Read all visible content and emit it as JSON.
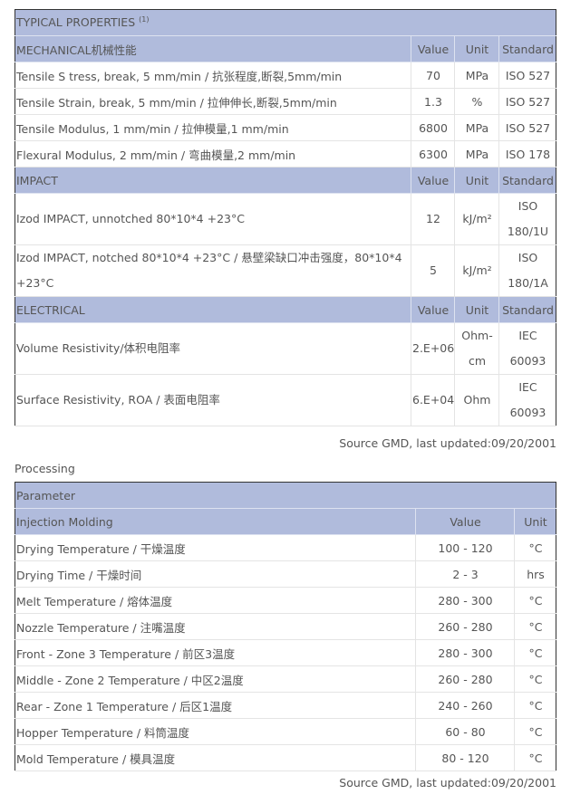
{
  "properties": {
    "title": "TYPICAL PROPERTIES",
    "title_note": "(1)",
    "mechanical": {
      "header": "MECHANICAL机械性能",
      "value": "Value",
      "unit": "Unit",
      "standard": "Standard",
      "rows": [
        {
          "name": "Tensile S tress, break, 5 mm/min / 抗张程度,断裂,5mm/min",
          "value": "70",
          "unit": "MPa",
          "standard": "ISO 527"
        },
        {
          "name": "Tensile Strain, break, 5 mm/min / 拉伸伸长,断裂,5mm/min",
          "value": "1.3",
          "unit": "%",
          "standard": "ISO 527"
        },
        {
          "name": "Tensile Modulus, 1 mm/min / 拉伸模量,1 mm/min",
          "value": "6800",
          "unit": "MPa",
          "standard": "ISO 527"
        },
        {
          "name": "Flexural Modulus, 2 mm/min / 弯曲模量,2 mm/min",
          "value": "6300",
          "unit": "MPa",
          "standard": "ISO 178"
        }
      ]
    },
    "impact": {
      "header": "IMPACT",
      "value": "Value",
      "unit": "Unit",
      "standard": "Standard",
      "rows": [
        {
          "name": "Izod IMPACT, unnotched 80*10*4 +23°C",
          "value": "12",
          "unit": "kJ/m²",
          "standard": "ISO 180/1U"
        },
        {
          "name": "Izod IMPACT, notched 80*10*4 +23°C / 悬壁梁缺口冲击强度，80*10*4 +23°C",
          "value": "5",
          "unit": "kJ/m²",
          "standard": "ISO 180/1A"
        }
      ]
    },
    "electrical": {
      "header": "ELECTRICAL",
      "value": "Value",
      "unit": "Unit",
      "standard": "Standard",
      "rows": [
        {
          "name": "Volume Resistivity/体积电阻率",
          "value": "2.E+06",
          "unit": "Ohm-cm",
          "standard": "IEC 60093"
        },
        {
          "name": "Surface Resistivity, ROA / 表面电阻率",
          "value": "6.E+04",
          "unit": "Ohm",
          "standard": "IEC 60093"
        }
      ]
    },
    "source": "Source GMD, last updated:09/20/2001"
  },
  "processing": {
    "label": "Processing",
    "header": "Parameter",
    "section": "Injection Molding",
    "value": "Value",
    "unit": "Unit",
    "rows": [
      {
        "name": "Drying Temperature / 干燥温度",
        "value": "100 - 120",
        "unit": "°C"
      },
      {
        "name": "Drying Time / 干燥时间",
        "value": "2 - 3",
        "unit": "hrs"
      },
      {
        "name": "Melt Temperature / 熔体温度",
        "value": "280 - 300",
        "unit": "°C"
      },
      {
        "name": "Nozzle Temperature / 注嘴温度",
        "value": "260 - 280",
        "unit": "°C"
      },
      {
        "name": "Front - Zone 3 Temperature / 前区3温度",
        "value": "280 - 300",
        "unit": "°C"
      },
      {
        "name": "Middle - Zone 2 Temperature / 中区2温度",
        "value": "260 - 280",
        "unit": "°C"
      },
      {
        "name": "Rear - Zone 1 Temperature / 后区1温度",
        "value": "240 - 260",
        "unit": "°C"
      },
      {
        "name": "Hopper Temperature / 料筒温度",
        "value": "60 - 80",
        "unit": "°C"
      },
      {
        "name": "Mold Temperature / 模具温度",
        "value": "80 - 120",
        "unit": "°C"
      }
    ],
    "source": "Source GMD, last updated:09/20/2001"
  }
}
